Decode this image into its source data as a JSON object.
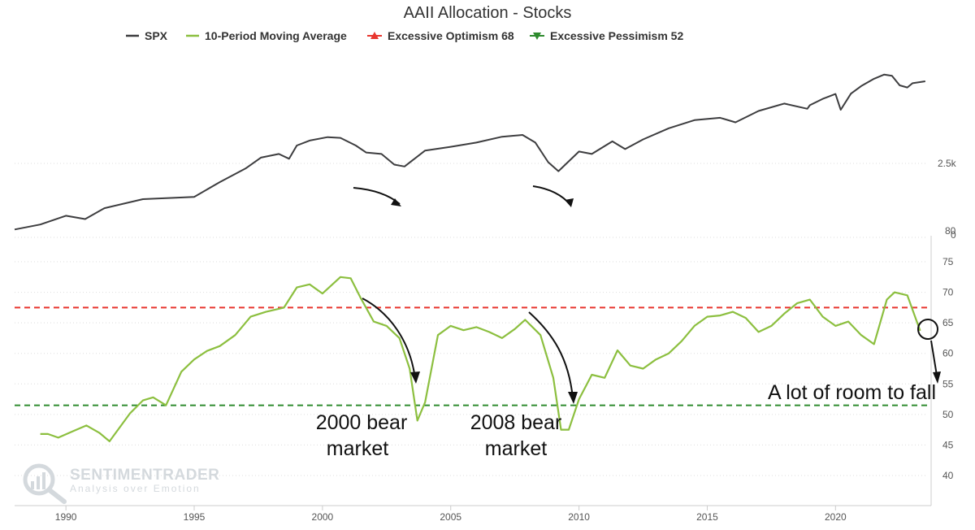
{
  "chart_data": {
    "type": "line",
    "title": "AAII Allocation - Stocks",
    "legend": {
      "placement": "top",
      "items": [
        {
          "name": "SPX",
          "color": "#3d3d3f",
          "marker": "line"
        },
        {
          "name": "10-Period Moving Average",
          "color": "#8cbf3f",
          "marker": "line"
        },
        {
          "name": "Excessive Optimism 68",
          "color": "#e8362f",
          "marker": "triangle-up"
        },
        {
          "name": "Excessive Pessimism 52",
          "color": "#2e8b2e",
          "marker": "triangle-down"
        }
      ]
    },
    "x_axis": {
      "range": [
        1988.0,
        2023.6
      ],
      "ticks": [
        1990,
        1995,
        2000,
        2005,
        2010,
        2015,
        2020
      ],
      "tick_labels": [
        "1990",
        "1995",
        "2000",
        "2005",
        "2010",
        "2015",
        "2020"
      ]
    },
    "upper_axis": {
      "scale": "log",
      "range": [
        220,
        6000
      ],
      "tick_labels": [
        "2.5k",
        "80",
        "0"
      ]
    },
    "lower_axis": {
      "range": [
        37,
        78
      ],
      "ticks": [
        40,
        45,
        50,
        55,
        60,
        65,
        70,
        75
      ],
      "tick_labels": [
        "40",
        "45",
        "50",
        "55",
        "60",
        "65",
        "70",
        "75"
      ]
    },
    "grid": true,
    "thresholds": [
      {
        "name": "Excessive Optimism 68",
        "value": 67.5,
        "color": "#e8362f"
      },
      {
        "name": "Excessive Pessimism 52",
        "value": 51.5,
        "color": "#2e8b2e"
      }
    ],
    "series": [
      {
        "name": "SPX",
        "axis": "upper",
        "color": "#3d3d3f",
        "x": [
          1988.0,
          1989.0,
          1990.0,
          1990.75,
          1991.5,
          1993.0,
          1995.0,
          1996.0,
          1997.0,
          1997.6,
          1998.3,
          1998.7,
          1999.0,
          1999.5,
          2000.2,
          2000.7,
          2001.3,
          2001.7,
          2002.3,
          2002.8,
          2003.2,
          2004.0,
          2005.0,
          2006.0,
          2007.0,
          2007.8,
          2008.3,
          2008.8,
          2009.2,
          2010.0,
          2010.5,
          2011.3,
          2011.8,
          2012.5,
          2013.5,
          2014.5,
          2015.5,
          2016.1,
          2017.0,
          2018.0,
          2018.9,
          2019.0,
          2019.5,
          2020.0,
          2020.2,
          2020.6,
          2021.0,
          2021.5,
          2021.9,
          2022.2,
          2022.5,
          2022.8,
          2023.0,
          2023.5
        ],
        "values": [
          255,
          280,
          330,
          310,
          380,
          450,
          470,
          620,
          800,
          980,
          1050,
          960,
          1230,
          1350,
          1440,
          1420,
          1230,
          1080,
          1050,
          860,
          830,
          1120,
          1200,
          1300,
          1450,
          1500,
          1300,
          900,
          760,
          1100,
          1050,
          1330,
          1150,
          1380,
          1700,
          1980,
          2070,
          1900,
          2350,
          2700,
          2450,
          2620,
          2950,
          3230,
          2400,
          3250,
          3750,
          4300,
          4650,
          4550,
          3800,
          3650,
          3950,
          4100
        ]
      },
      {
        "name": "10-Period Moving Average",
        "axis": "lower",
        "color": "#8cbf3f",
        "x": [
          1989.0,
          1989.3,
          1989.7,
          1990.3,
          1990.8,
          1991.3,
          1991.7,
          1992.5,
          1993.0,
          1993.4,
          1993.9,
          1994.5,
          1995.0,
          1995.5,
          1996.0,
          1996.6,
          1997.2,
          1997.8,
          1998.5,
          1999.0,
          1999.5,
          2000.0,
          2000.7,
          2001.1,
          2001.5,
          2002.0,
          2002.5,
          2003.0,
          2003.4,
          2003.7,
          2004.0,
          2004.5,
          2005.0,
          2005.5,
          2006.0,
          2006.5,
          2007.0,
          2007.5,
          2007.9,
          2008.5,
          2009.0,
          2009.3,
          2009.6,
          2010.0,
          2010.5,
          2011.0,
          2011.5,
          2012.0,
          2012.5,
          2013.0,
          2013.5,
          2014.0,
          2014.5,
          2015.0,
          2015.5,
          2016.0,
          2016.5,
          2017.0,
          2017.5,
          2018.0,
          2018.5,
          2019.0,
          2019.5,
          2020.0,
          2020.5,
          2021.0,
          2021.5,
          2022.0,
          2022.3,
          2022.8,
          2023.3
        ],
        "values": [
          46.8,
          46.8,
          46.2,
          47.3,
          48.2,
          47.0,
          45.6,
          50.2,
          52.3,
          52.8,
          51.5,
          57.0,
          59.0,
          60.4,
          61.2,
          63.0,
          66.0,
          66.8,
          67.5,
          70.8,
          71.3,
          69.8,
          72.5,
          72.3,
          69.0,
          65.2,
          64.5,
          62.5,
          57.5,
          49.0,
          52.0,
          63.0,
          64.5,
          63.8,
          64.3,
          63.5,
          62.5,
          64.0,
          65.5,
          63.0,
          56.0,
          47.5,
          47.5,
          52.5,
          56.5,
          56.0,
          60.5,
          58.0,
          57.5,
          59.0,
          60.0,
          62.0,
          64.5,
          66.0,
          66.2,
          66.8,
          65.8,
          63.5,
          64.5,
          66.5,
          68.2,
          68.8,
          66.0,
          64.5,
          65.2,
          63.0,
          61.5,
          68.8,
          70.0,
          69.5,
          63.7
        ]
      }
    ],
    "annotations": [
      {
        "lines": [
          "2000 bear",
          "market"
        ]
      },
      {
        "lines": [
          "2008 bear",
          "market"
        ]
      },
      {
        "lines": [
          "A lot of room to fall"
        ]
      }
    ],
    "watermark": {
      "brand": "SENTIMENTRADER",
      "tagline": "Analysis over Emotion"
    }
  }
}
